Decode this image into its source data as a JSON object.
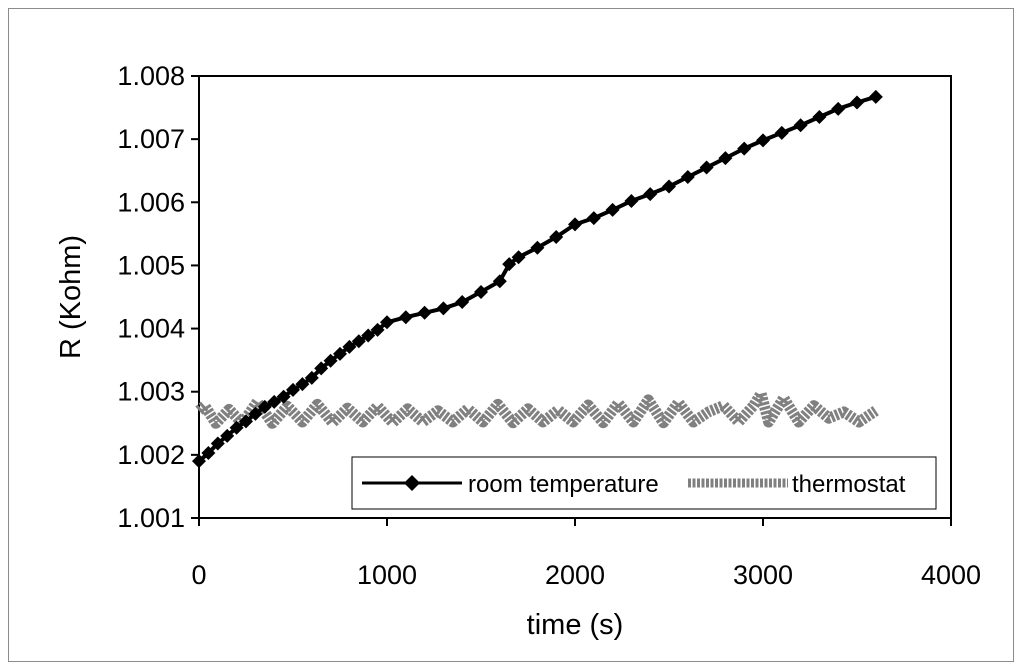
{
  "chart_data": {
    "type": "line",
    "xlabel": "time (s)",
    "ylabel": "R (Kohm)",
    "xlim": [
      0,
      4000
    ],
    "ylim": [
      1.001,
      1.008
    ],
    "x_ticks": [
      "0",
      "1000",
      "2000",
      "3000",
      "4000"
    ],
    "x_tick_values": [
      0,
      1000,
      2000,
      3000,
      4000
    ],
    "y_ticks": [
      "1.001",
      "1.002",
      "1.003",
      "1.004",
      "1.005",
      "1.006",
      "1.007",
      "1.008"
    ],
    "y_tick_values": [
      1.001,
      1.002,
      1.003,
      1.004,
      1.005,
      1.006,
      1.007,
      1.008
    ],
    "grid": false,
    "legend_position": "bottom-right",
    "colors": {
      "room": "#000000",
      "thermostat": "#808080",
      "frame": "#8c8c8c"
    },
    "series": [
      {
        "name": "room temperature",
        "marker": "diamond",
        "x": [
          0,
          50,
          100,
          150,
          200,
          250,
          300,
          350,
          400,
          450,
          500,
          550,
          600,
          650,
          700,
          750,
          800,
          850,
          900,
          950,
          1000,
          1100,
          1200,
          1300,
          1400,
          1500,
          1600,
          1650,
          1700,
          1800,
          1900,
          2000,
          2100,
          2200,
          2300,
          2400,
          2500,
          2600,
          2700,
          2800,
          2900,
          3000,
          3100,
          3200,
          3300,
          3400,
          3500,
          3600
        ],
        "y": [
          1.0019,
          1.00203,
          1.00218,
          1.0023,
          1.00243,
          1.00253,
          1.00265,
          1.00276,
          1.00284,
          1.00292,
          1.00303,
          1.00312,
          1.00322,
          1.00337,
          1.00349,
          1.0036,
          1.00371,
          1.0038,
          1.00389,
          1.00398,
          1.0041,
          1.00418,
          1.00425,
          1.00432,
          1.00442,
          1.00458,
          1.00475,
          1.00502,
          1.00513,
          1.00528,
          1.00545,
          1.00565,
          1.00575,
          1.00588,
          1.00602,
          1.00613,
          1.00625,
          1.0064,
          1.00655,
          1.0067,
          1.00685,
          1.00698,
          1.0071,
          1.00722,
          1.00735,
          1.00748,
          1.00758,
          1.00767
        ]
      },
      {
        "name": "thermostat",
        "marker": "none",
        "x": [
          0,
          30,
          90,
          160,
          230,
          310,
          390,
          470,
          550,
          630,
          710,
          790,
          870,
          950,
          1030,
          1110,
          1190,
          1270,
          1350,
          1430,
          1510,
          1590,
          1670,
          1750,
          1830,
          1910,
          1990,
          2070,
          2150,
          2230,
          2310,
          2390,
          2470,
          2550,
          2630,
          2710,
          2790,
          2870,
          2950,
          2990,
          3030,
          3110,
          3190,
          3270,
          3350,
          3430,
          3510,
          3600
        ],
        "y": [
          1.0027,
          1.00278,
          1.0025,
          1.00272,
          1.0025,
          1.00284,
          1.0025,
          1.00277,
          1.00252,
          1.0028,
          1.00251,
          1.00274,
          1.00252,
          1.00277,
          1.00251,
          1.00273,
          1.00252,
          1.0027,
          1.00252,
          1.00273,
          1.00252,
          1.0028,
          1.00251,
          1.00273,
          1.00252,
          1.00271,
          1.00252,
          1.00279,
          1.00251,
          1.00282,
          1.00252,
          1.00287,
          1.00251,
          1.00283,
          1.00252,
          1.00268,
          1.00278,
          1.00252,
          1.00278,
          1.00297,
          1.00252,
          1.0029,
          1.00252,
          1.00278,
          1.00258,
          1.00268,
          1.00252,
          1.0027
        ]
      }
    ]
  }
}
